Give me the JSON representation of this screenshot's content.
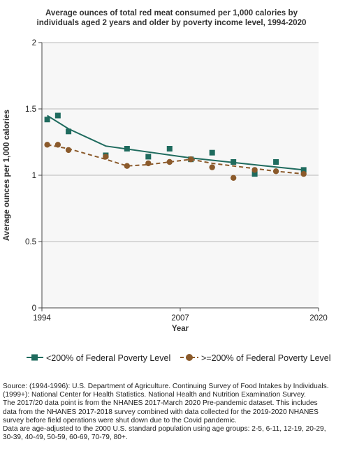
{
  "chart_data": {
    "type": "line",
    "title": "Average ounces of total red meat consumed per 1,000 calories by individuals aged 2 years and older by poverty income level, 1994-2020",
    "title_lines": [
      "Average ounces of total red meat consumed per 1,000 calories by",
      "individuals aged 2 years and older by poverty income level, 1994-2020"
    ],
    "xlabel": "Year",
    "ylabel": "Average ounces per 1,000 calories",
    "xlim": [
      1994,
      2020
    ],
    "ylim": [
      0,
      2
    ],
    "x_ticks": [
      "1994",
      "2007",
      "2020"
    ],
    "y_ticks": [
      "0",
      "0.5",
      "1",
      "1.5",
      "2"
    ],
    "grid": "horizontal",
    "legend_position": "bottom",
    "series": [
      {
        "name": "<200% of Federal Poverty Level",
        "color": "#1f6b5e",
        "marker": "square",
        "line_style": "solid",
        "points_x": [
          1994.5,
          1995.5,
          1996.5,
          2000,
          2002,
          2004,
          2006,
          2008,
          2010,
          2012,
          2014,
          2016,
          2018.6
        ],
        "points_y": [
          1.42,
          1.45,
          1.33,
          1.15,
          1.2,
          1.14,
          1.2,
          1.12,
          1.17,
          1.1,
          1.01,
          1.1,
          1.04
        ],
        "trend_x": [
          1994.5,
          1996.5,
          2000,
          2008,
          2018.6
        ],
        "trend_y": [
          1.45,
          1.35,
          1.22,
          1.13,
          1.04
        ]
      },
      {
        "name": ">=200% of Federal Poverty Level",
        "color": "#8b5a2b",
        "marker": "circle",
        "line_style": "dashed",
        "points_x": [
          1994.5,
          1995.5,
          1996.5,
          2000,
          2002,
          2004,
          2006,
          2008,
          2010,
          2012,
          2014,
          2016,
          2018.6
        ],
        "points_y": [
          1.23,
          1.23,
          1.19,
          1.14,
          1.07,
          1.09,
          1.1,
          1.12,
          1.06,
          0.98,
          1.04,
          1.03,
          1.01
        ],
        "trend_x": [
          1994.5,
          1996.5,
          2000,
          2002,
          2004,
          2006,
          2008,
          2010,
          2012,
          2014,
          2016,
          2018.6
        ],
        "trend_y": [
          1.23,
          1.2,
          1.12,
          1.07,
          1.08,
          1.1,
          1.12,
          1.09,
          1.07,
          1.05,
          1.03,
          1.01
        ]
      }
    ]
  },
  "source_lines": [
    "Source: (1994-1996): U.S. Department of Agriculture. Continuing Survey of Food Intakes by Individuals.",
    "(1999+): National Center for Health Statistics. National Health and Nutrition Examination Survey.",
    "The 2017/20 data point is from the NHANES 2017-March 2020 Pre-pandemic dataset. This includes",
    "data from the NHANES 2017-2018 survey combined with data collected for the 2019-2020 NHANES",
    "survey before field operations were shut down due to the Covid pandemic.",
    "Data are age-adjusted to the 2000 U.S. standard population using age groups: 2-5, 6-11, 12-19, 20-29,",
    "30-39, 40-49, 50-59, 60-69, 70-79, 80+."
  ]
}
